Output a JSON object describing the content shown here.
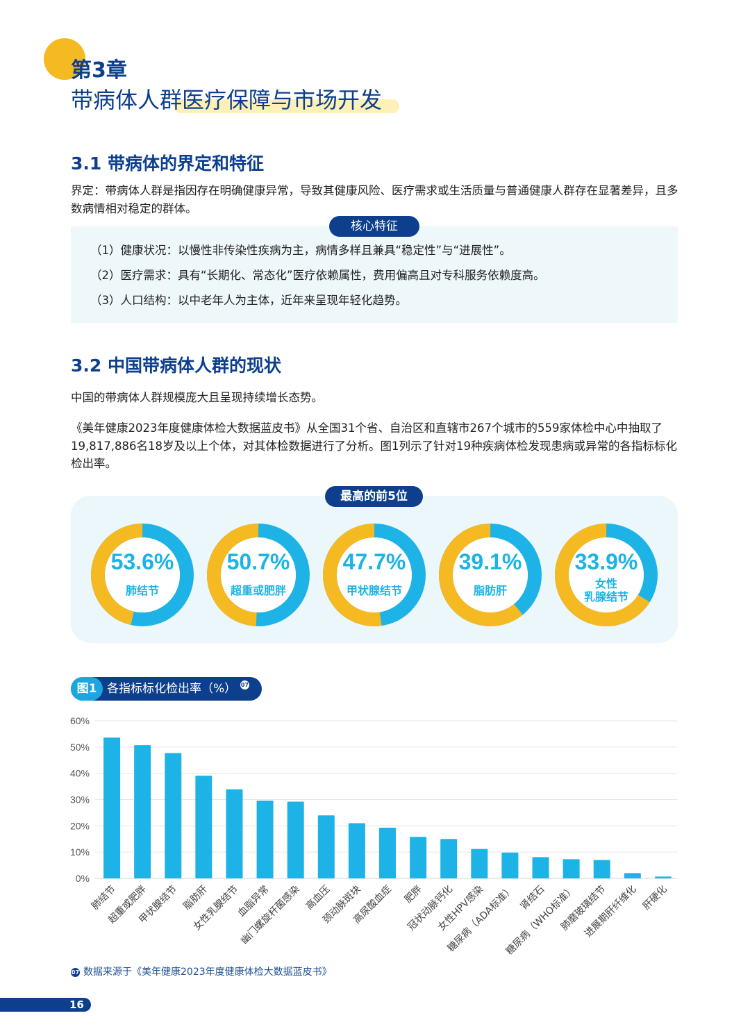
{
  "header": {
    "chapter": "第3章",
    "title": "带病体人群医疗保障与市场开发"
  },
  "section1": {
    "heading": "3.1  带病体的界定和特征",
    "definition": "界定：带病体人群是指因存在明确健康异常，导致其健康风险、医疗需求或生活质量与普通健康人群存在显著差异，且多数病情相对稳定的群体。",
    "pill": "核心特征",
    "features": [
      "（1）健康状况：以慢性非传染性疾病为主，病情多样且兼具“稳定性”与“进展性”。",
      "（2）医疗需求：具有“长期化、常态化”医疗依赖属性，费用偏高且对专科服务依赖度高。",
      "（3）人口结构：以中老年人为主体，近年来呈现年轻化趋势。"
    ]
  },
  "section2": {
    "heading": "3.2  中国带病体人群的现状",
    "intro": "中国的带病体人群规模庞大且呈现持续增长态势。",
    "body": "《美年健康2023年度健康体检大数据蓝皮书》从全国31个省、自治区和直辖市267个城市的559家体检中心中抽取了19,817,886名18岁及以上个体，对其体检数据进行了分析。图1列示了针对19种疾病体检发现患病或异常的各指标标化检出率。"
  },
  "top5": {
    "pill": "最高的前5位",
    "items": [
      {
        "value": 53.6,
        "pct": "53.6%",
        "label": "肺结节"
      },
      {
        "value": 50.7,
        "pct": "50.7%",
        "label": "超重或肥胖"
      },
      {
        "value": 47.7,
        "pct": "47.7%",
        "label": "甲状腺结节"
      },
      {
        "value": 39.1,
        "pct": "39.1%",
        "label": "脂肪肝"
      },
      {
        "value": 33.9,
        "pct": "33.9%",
        "label": "女性",
        "label2": "乳腺结节"
      }
    ]
  },
  "figure": {
    "num": "图1",
    "title": "各指标标化检出率（%）",
    "ref": "07"
  },
  "chart_data": {
    "type": "bar",
    "title": "各指标标化检出率（%）",
    "ylim": [
      0,
      60
    ],
    "yticks": [
      "0%",
      "10%",
      "20%",
      "30%",
      "40%",
      "50%",
      "60%"
    ],
    "grid": true,
    "categories": [
      "肺结节",
      "超重或肥胖",
      "甲状腺结节",
      "脂肪肝",
      "女性乳腺结节",
      "血脂异常",
      "幽门螺旋杆菌感染",
      "高血压",
      "颈动脉斑块",
      "高尿酸血症",
      "肥胖",
      "冠状动脉钙化",
      "女性HPV感染",
      "糖尿病（ADA标准）",
      "肾结石",
      "糖尿病（WHO标准）",
      "肺磨玻璃结节",
      "进展期肝纤维化",
      "肝硬化"
    ],
    "values": [
      53.6,
      50.7,
      47.7,
      39.1,
      33.9,
      29.6,
      29.2,
      24.0,
      21.0,
      19.3,
      15.8,
      15.0,
      11.2,
      9.8,
      8.1,
      7.3,
      7.0,
      2.0,
      0.7
    ],
    "colors": {
      "bar": "#1db3e6",
      "grid": "#e3e6ea"
    }
  },
  "footnote": {
    "ref": "07",
    "text": "数据来源于《美年健康2023年度健康体检大数据蓝皮书》"
  },
  "page": {
    "number": "16"
  },
  "colors": {
    "navy": "#0d3f8c",
    "cyan": "#1db3e6",
    "yellow": "#f5b921"
  }
}
